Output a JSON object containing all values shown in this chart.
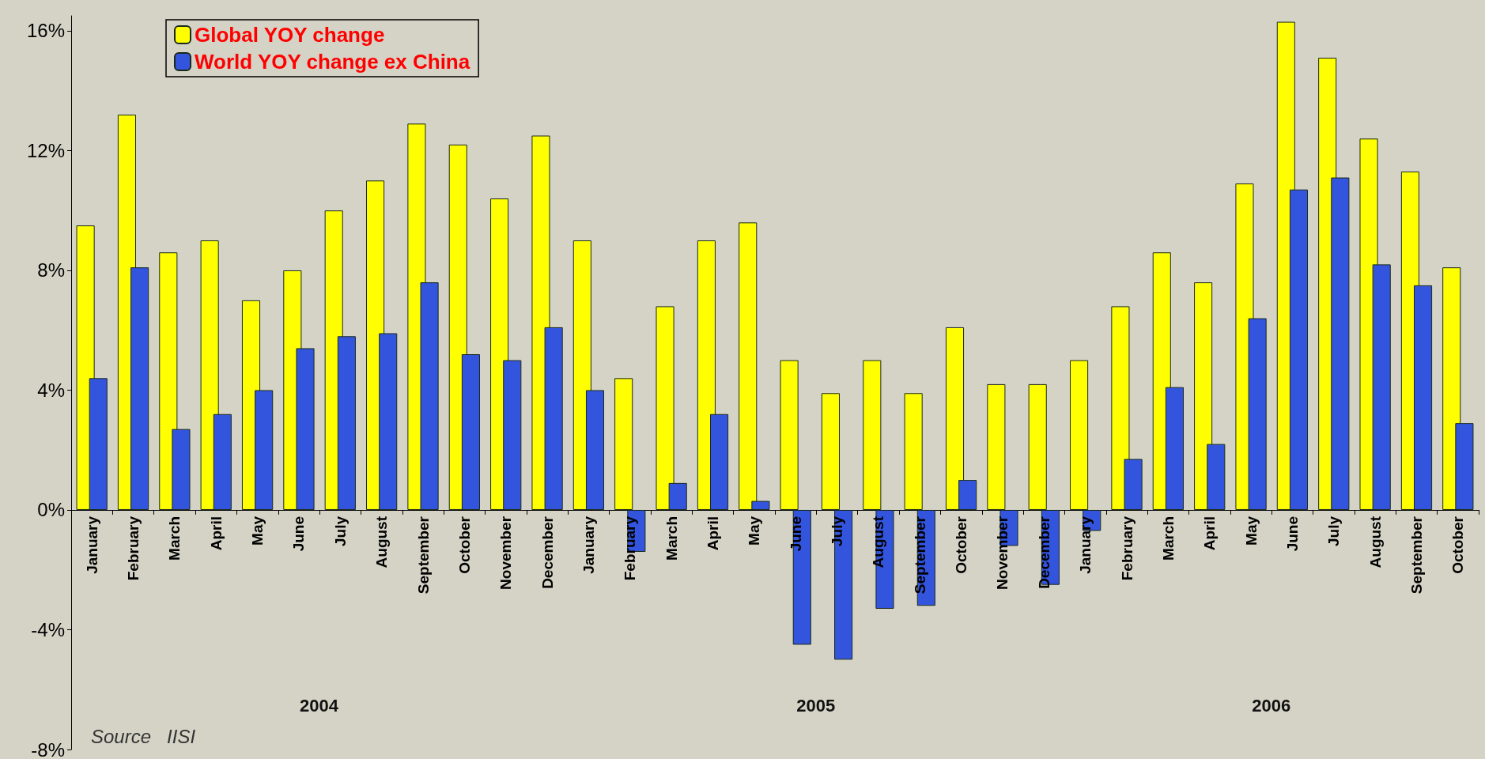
{
  "chart_data": {
    "type": "bar",
    "categories": [
      "January",
      "February",
      "March",
      "April",
      "May",
      "June",
      "July",
      "August",
      "September",
      "October",
      "November",
      "December",
      "January",
      "February",
      "March",
      "April",
      "May",
      "June",
      "July",
      "August",
      "September",
      "October",
      "November",
      "December",
      "January",
      "February",
      "March",
      "April",
      "May",
      "June",
      "July",
      "August",
      "September",
      "October"
    ],
    "series": [
      {
        "name": "Global YOY change",
        "color": "#ffff00",
        "values": [
          9.5,
          13.2,
          8.6,
          9.0,
          7.0,
          8.0,
          10.0,
          11.0,
          12.9,
          12.2,
          10.4,
          12.5,
          9.0,
          4.4,
          6.8,
          9.0,
          9.6,
          5.0,
          3.9,
          5.0,
          3.9,
          6.1,
          4.2,
          4.2,
          5.0,
          6.8,
          8.6,
          7.6,
          10.9,
          16.3,
          15.1,
          12.4,
          11.3,
          8.1
        ]
      },
      {
        "name": "World YOY change ex China",
        "color": "#3355dd",
        "values": [
          4.4,
          8.1,
          2.7,
          3.2,
          4.0,
          5.4,
          5.8,
          5.9,
          7.6,
          5.2,
          5.0,
          6.1,
          4.0,
          -1.4,
          0.9,
          3.2,
          0.3,
          -4.5,
          -5.0,
          -3.3,
          -3.2,
          1.0,
          -1.2,
          -2.5,
          -0.7,
          1.7,
          4.1,
          2.2,
          6.4,
          10.7,
          11.1,
          8.2,
          7.5,
          2.9
        ]
      }
    ],
    "ylim": [
      -8,
      16.5
    ],
    "yticks": [
      {
        "value": -8,
        "label": "-8%"
      },
      {
        "value": -4,
        "label": "-4%"
      },
      {
        "value": 0,
        "label": "0%"
      },
      {
        "value": 4,
        "label": "4%"
      },
      {
        "value": 8,
        "label": "8%"
      },
      {
        "value": 12,
        "label": "12%"
      },
      {
        "value": 16,
        "label": "16%"
      }
    ],
    "legend": "top left",
    "grid": false,
    "annotations": [
      "2004",
      "2005",
      "2006",
      "Source   IISI"
    ]
  }
}
